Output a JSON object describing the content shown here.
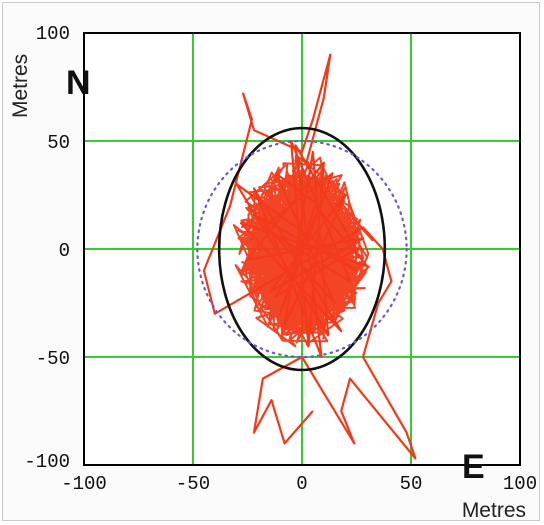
{
  "chart_data": {
    "type": "line",
    "xlabel": "Metres",
    "ylabel": "Metres",
    "north_label": "N",
    "east_label": "E",
    "xlim": [
      -100,
      100
    ],
    "ylim": [
      -100,
      100
    ],
    "x_ticks": [
      -100,
      -50,
      0,
      50,
      100
    ],
    "y_ticks": [
      -100,
      -50,
      0,
      50,
      100
    ],
    "x_tick_labels": [
      "-100",
      "-50",
      "0",
      "50",
      "100"
    ],
    "y_tick_labels": [
      "-100",
      "-50",
      "0",
      "50",
      "100"
    ],
    "grid": true,
    "colors": {
      "track": "#f23a1a",
      "grid": "#33cc33",
      "ellipse_solid": "#111111",
      "ellipse_dotted": "#6a5acd",
      "axes": "#000000"
    },
    "series": [
      {
        "style": "solid-red-track",
        "x": [
          0,
          8,
          -12,
          15,
          -20,
          25,
          -30,
          12,
          5,
          -8,
          20,
          -15,
          28,
          -25,
          10,
          3,
          -5,
          22,
          -18,
          14,
          -10,
          6,
          30,
          -28,
          18,
          -22,
          9,
          -3,
          25,
          -12,
          0
        ],
        "y": [
          0,
          20,
          35,
          -25,
          15,
          -10,
          30,
          -40,
          45,
          -35,
          25,
          -20,
          5,
          -5,
          40,
          -45,
          50,
          -15,
          10,
          35,
          -30,
          20,
          -8,
          12,
          -38,
          28,
          -50,
          48,
          0,
          -22,
          0
        ]
      },
      {
        "style": "solid-red-excursions",
        "x": [
          2,
          10,
          13,
          9,
          5,
          0,
          -22,
          -27,
          -23,
          -33,
          -45,
          -40,
          28,
          37,
          41,
          35,
          28,
          48,
          52,
          22,
          18,
          24,
          0,
          -18,
          -22,
          -14,
          -8,
          5
        ],
        "y": [
          40,
          70,
          90,
          75,
          60,
          45,
          55,
          72,
          60,
          20,
          -10,
          -30,
          10,
          0,
          -15,
          -25,
          -50,
          -85,
          -97,
          -60,
          -75,
          -90,
          -50,
          -60,
          -85,
          -70,
          -90,
          -75
        ]
      },
      {
        "style": "solid-black-ellipse",
        "center": [
          0,
          0
        ],
        "semi_axes": [
          38,
          56
        ]
      },
      {
        "style": "dotted-blue-ellipse",
        "center": [
          0,
          0
        ],
        "semi_axes": [
          48,
          50
        ]
      }
    ]
  }
}
